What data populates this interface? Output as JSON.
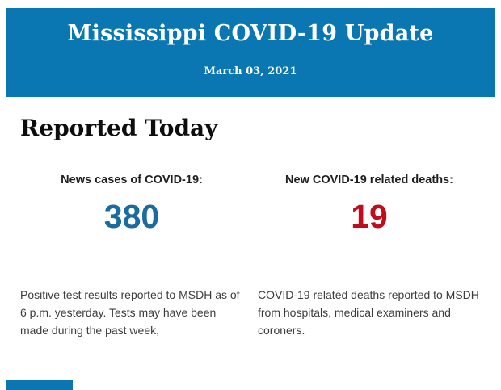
{
  "header": {
    "title": "Mississippi COVID-19 Update",
    "date": "March 03, 2021",
    "background_color": "#0a76b2",
    "text_color": "#ffffff"
  },
  "report": {
    "heading": "Reported Today",
    "stats": [
      {
        "label": "News cases of COVID-19:",
        "value": "380",
        "value_color": "#1b6aa0",
        "description": "Positive test results reported to MSDH as of 6 p.m. yesterday. Tests may have been made during the past week,"
      },
      {
        "label": "New COVID-19 related deaths:",
        "value": "19",
        "value_color": "#c00d1d",
        "description": "COVID-19 related deaths reported to MSDH from hospitals, medical examiners and coroners."
      }
    ]
  },
  "footer": {
    "accent_color": "#0a76b2"
  }
}
